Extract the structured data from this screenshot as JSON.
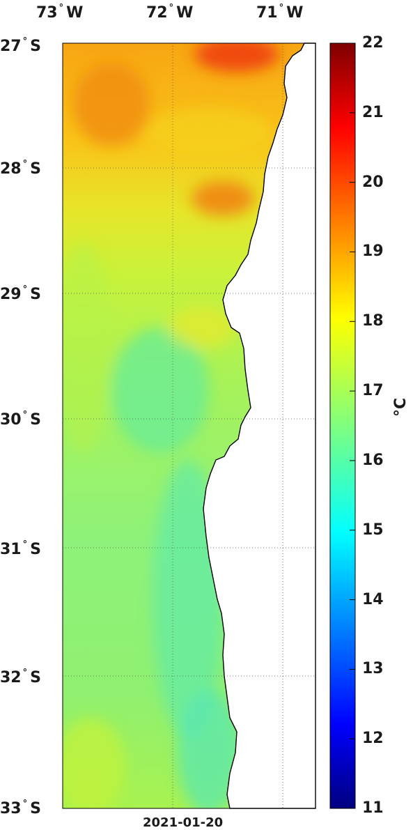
{
  "map": {
    "date": "2021-01-20",
    "unit_label": "°C",
    "lon_labels": [
      {
        "deg": "73",
        "hemi": "W"
      },
      {
        "deg": "72",
        "hemi": "W"
      },
      {
        "deg": "71",
        "hemi": "W"
      }
    ],
    "lat_labels": [
      {
        "deg": "27",
        "hemi": "S"
      },
      {
        "deg": "28",
        "hemi": "S"
      },
      {
        "deg": "29",
        "hemi": "S"
      },
      {
        "deg": "30",
        "hemi": "S"
      },
      {
        "deg": "31",
        "hemi": "S"
      },
      {
        "deg": "32",
        "hemi": "S"
      },
      {
        "deg": "33",
        "hemi": "S"
      }
    ],
    "colorbar": {
      "min": 11,
      "max": 22,
      "ticks": [
        "22",
        "21",
        "20",
        "19",
        "18",
        "17",
        "16",
        "15",
        "14",
        "13",
        "12",
        "11"
      ]
    },
    "grid": "dotted",
    "land_color": "#ffffff",
    "coast_color": "#000000"
  }
}
